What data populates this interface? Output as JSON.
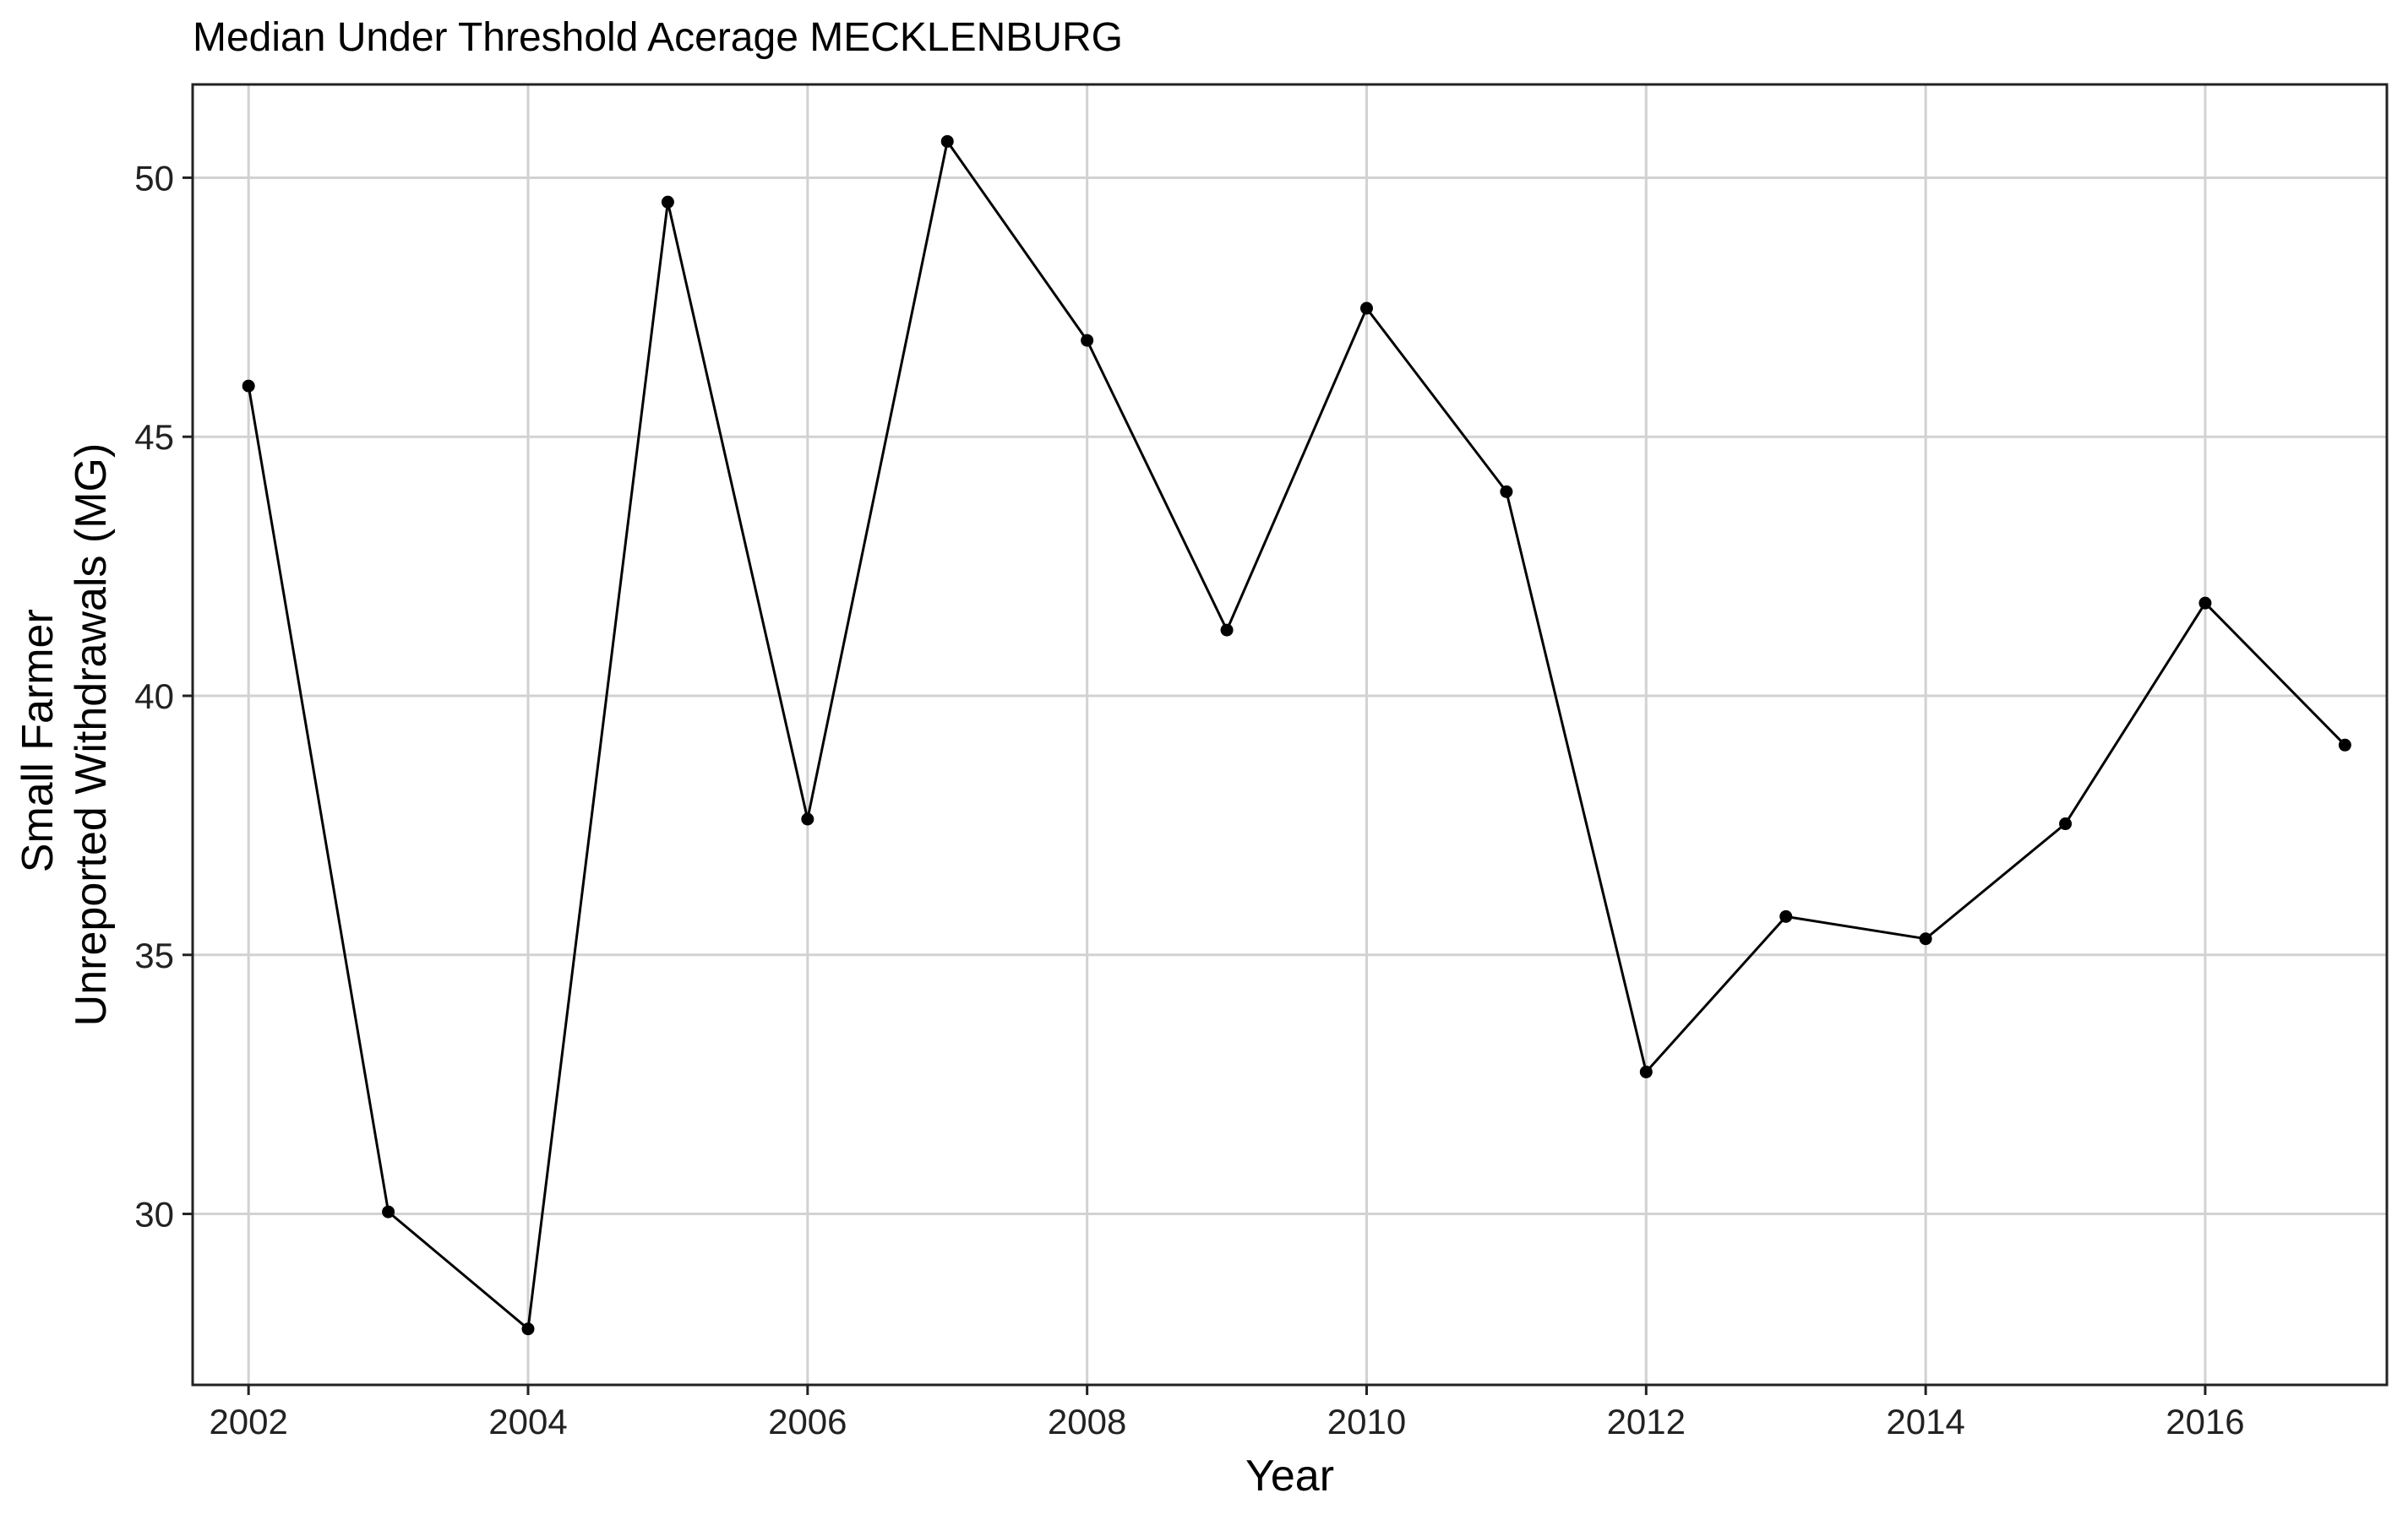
{
  "chart_data": {
    "type": "line",
    "title": "Median Under Threshold Acerage MECKLENBURG",
    "xlabel": "Year",
    "ylabel_lines": [
      "Small Farmer",
      "Unreported Withdrawals (MG)"
    ],
    "xlim": [
      2001.6,
      2017.3
    ],
    "ylim": [
      26.7,
      51.8
    ],
    "x_ticks": [
      2002,
      2004,
      2006,
      2008,
      2010,
      2012,
      2014,
      2016
    ],
    "y_ticks": [
      30,
      35,
      40,
      45,
      50
    ],
    "grid": true,
    "legend": "none",
    "series": [
      {
        "x": [
          2002,
          2003,
          2004,
          2005,
          2006,
          2007,
          2008,
          2009,
          2010,
          2011,
          2012,
          2013,
          2014,
          2015,
          2016,
          2017
        ],
        "y": [
          45.98,
          30.04,
          27.78,
          49.53,
          37.62,
          50.7,
          46.86,
          41.27,
          47.48,
          43.94,
          32.74,
          35.74,
          35.31,
          37.53,
          41.79,
          39.05
        ],
        "color": "#000000"
      }
    ]
  }
}
